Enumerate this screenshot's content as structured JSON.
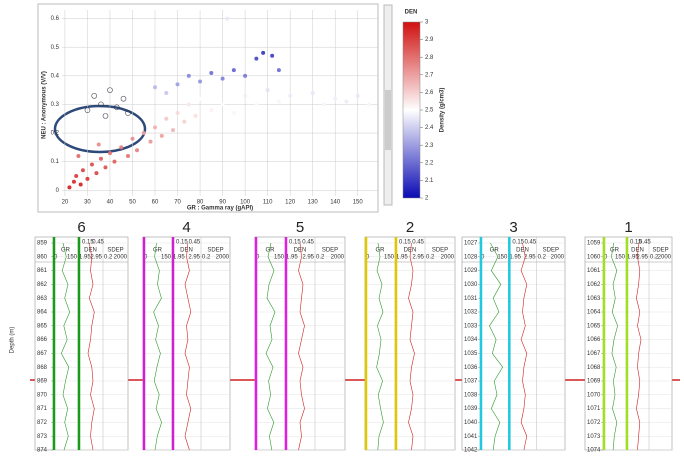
{
  "chart_data": [
    {
      "type": "scatter",
      "x_label": "GR : Gamma ray (gAPI)",
      "y_label": "NEU : Anonymous (V/V)",
      "color_label": "DEN",
      "colorbar_title": "Density (g/cm3)",
      "xlim": [
        18.7,
        159
      ],
      "ylim": [
        -0.02,
        0.63
      ],
      "xticks": [
        20,
        30,
        40,
        50,
        60,
        70,
        80,
        90,
        100,
        110,
        120,
        130,
        140,
        150
      ],
      "yticks": [
        0,
        0.1,
        0.2,
        0.3,
        0.4,
        0.5,
        0.6
      ],
      "clim": [
        2,
        3
      ],
      "cticks": [
        2,
        2.1,
        2.2,
        2.3,
        2.4,
        2.5,
        2.6,
        2.7,
        2.8,
        2.9,
        3
      ],
      "colormap": [
        "#0a0ab4",
        "#ffffff",
        "#d01010"
      ],
      "grid": true,
      "x": [
        22,
        24,
        25,
        27,
        28,
        30,
        32,
        34,
        36,
        38,
        40,
        42,
        45,
        48,
        50,
        52,
        55,
        58,
        60,
        63,
        65,
        68,
        70,
        73,
        75,
        78,
        80,
        85,
        90,
        95,
        100,
        105,
        110,
        115,
        120,
        125,
        130,
        135,
        140,
        145,
        150,
        155,
        70,
        75,
        80,
        85,
        90,
        95,
        100,
        105,
        108,
        112,
        115,
        60,
        65,
        30,
        33,
        36,
        40,
        43,
        46,
        38,
        48,
        35,
        26,
        92
      ],
      "values": [
        0.01,
        0.03,
        0.05,
        0.02,
        0.07,
        0.04,
        0.09,
        0.06,
        0.11,
        0.08,
        0.13,
        0.1,
        0.15,
        0.12,
        0.18,
        0.14,
        0.2,
        0.17,
        0.22,
        0.19,
        0.25,
        0.21,
        0.27,
        0.24,
        0.3,
        0.26,
        0.32,
        0.28,
        0.3,
        0.27,
        0.33,
        0.3,
        0.35,
        0.31,
        0.33,
        0.29,
        0.34,
        0.3,
        0.32,
        0.31,
        0.33,
        0.3,
        0.37,
        0.4,
        0.38,
        0.41,
        0.39,
        0.42,
        0.4,
        0.46,
        0.48,
        0.47,
        0.42,
        0.36,
        0.34,
        0.28,
        0.33,
        0.3,
        0.35,
        0.29,
        0.32,
        0.26,
        0.27,
        0.16,
        0.12,
        0.6
      ],
      "color_values": [
        2.98,
        2.95,
        2.92,
        2.97,
        2.9,
        2.93,
        2.88,
        2.9,
        2.85,
        2.87,
        2.8,
        2.84,
        2.78,
        2.8,
        2.74,
        2.77,
        2.7,
        2.72,
        2.67,
        2.7,
        2.62,
        2.66,
        2.58,
        2.6,
        2.55,
        2.57,
        2.5,
        2.53,
        2.5,
        2.52,
        2.47,
        2.49,
        2.44,
        2.48,
        2.46,
        2.5,
        2.45,
        2.48,
        2.47,
        2.46,
        2.45,
        2.48,
        2.3,
        2.25,
        2.28,
        2.2,
        2.24,
        2.18,
        2.22,
        2.12,
        2.08,
        2.1,
        2.2,
        2.35,
        2.38,
        2.5,
        2.48,
        2.46,
        2.44,
        2.5,
        2.47,
        2.52,
        2.51,
        2.75,
        2.82,
        2.45
      ]
    },
    {
      "type": "well_logs",
      "depth_label": "Depth (m)",
      "neu_scale": [
        0.15,
        0.45
      ],
      "tracks": [
        {
          "name": "GR",
          "min": 0,
          "max": 150
        },
        {
          "name": "DEN",
          "min": 1.95,
          "max": 2.95
        },
        {
          "name": "SDEP",
          "min": 0.2,
          "max": 2000
        }
      ],
      "wells": [
        {
          "label": "6",
          "color": "#1a9a1a",
          "gr": [
            60,
            80,
            55,
            90,
            70,
            100,
            65,
            85,
            50,
            95,
            75,
            60,
            88,
            70,
            92,
            66
          ],
          "den": [
            2.4,
            2.5,
            2.45,
            2.55,
            2.4,
            2.6,
            2.5,
            2.45,
            2.35,
            2.5,
            2.55,
            2.45,
            2.6,
            2.5,
            2.45,
            2.55
          ],
          "depth_ticks": [
            859,
            860,
            861,
            862,
            863,
            864,
            865,
            866,
            867,
            868,
            869,
            870,
            871,
            872,
            873,
            874
          ]
        },
        {
          "label": "4",
          "color": "#d020d0",
          "gr": [
            70,
            60,
            85,
            75,
            95,
            55,
            80,
            65,
            90,
            72,
            58,
            84,
            68,
            96,
            74,
            62
          ],
          "den": [
            2.5,
            2.45,
            2.55,
            2.4,
            2.5,
            2.6,
            2.45,
            2.5,
            2.4,
            2.55,
            2.5,
            2.45,
            2.6,
            2.5,
            2.4,
            2.55
          ]
        },
        {
          "label": "5",
          "color": "#e020e0",
          "gr": [
            80,
            65,
            95,
            70,
            60,
            100,
            75,
            85,
            55,
            90,
            68,
            78,
            62,
            94,
            72,
            84
          ],
          "den": [
            2.45,
            2.5,
            2.4,
            2.55,
            2.5,
            2.45,
            2.6,
            2.5,
            2.4,
            2.55,
            2.45,
            2.5,
            2.6,
            2.45,
            2.5,
            2.4
          ]
        },
        {
          "label": "2",
          "color": "#e0c800",
          "gr": [
            65,
            75,
            60,
            85,
            70,
            90,
            62,
            80,
            72,
            58,
            88,
            66,
            78,
            92,
            70,
            64
          ],
          "den": [
            2.5,
            2.45,
            2.55,
            2.5,
            2.4,
            2.55,
            2.5,
            2.45,
            2.6,
            2.5,
            2.45,
            2.55,
            2.5,
            2.4,
            2.55,
            2.5
          ]
        },
        {
          "label": "3",
          "color": "#20c8e0",
          "gr": [
            55,
            95,
            60,
            110,
            70,
            100,
            50,
            85,
            65,
            120,
            75,
            90,
            60,
            105,
            80,
            70
          ],
          "den": [
            2.45,
            2.55,
            2.4,
            2.6,
            2.5,
            2.45,
            2.55,
            2.4,
            2.6,
            2.5,
            2.45,
            2.55,
            2.5,
            2.4,
            2.6,
            2.5
          ],
          "depth_ticks": [
            1027,
            1028,
            1029,
            1030,
            1031,
            1032,
            1033,
            1034,
            1035,
            1036,
            1037,
            1038,
            1039,
            1040,
            1041,
            1042
          ]
        },
        {
          "label": "1",
          "color": "#a0e020",
          "gr": [
            70,
            55,
            90,
            65,
            80,
            60,
            95,
            72,
            58,
            86,
            68,
            78,
            62,
            90,
            74,
            66
          ],
          "den": [
            2.5,
            2.45,
            2.55,
            2.5,
            2.4,
            2.55,
            2.45,
            2.6,
            2.5,
            2.45,
            2.55,
            2.5,
            2.4,
            2.55,
            2.5,
            2.45
          ],
          "depth_ticks": [
            1059,
            1060,
            1061,
            1062,
            1063,
            1064,
            1065,
            1066,
            1067,
            1068,
            1069,
            1070,
            1071,
            1072,
            1073,
            1074
          ]
        }
      ]
    }
  ]
}
